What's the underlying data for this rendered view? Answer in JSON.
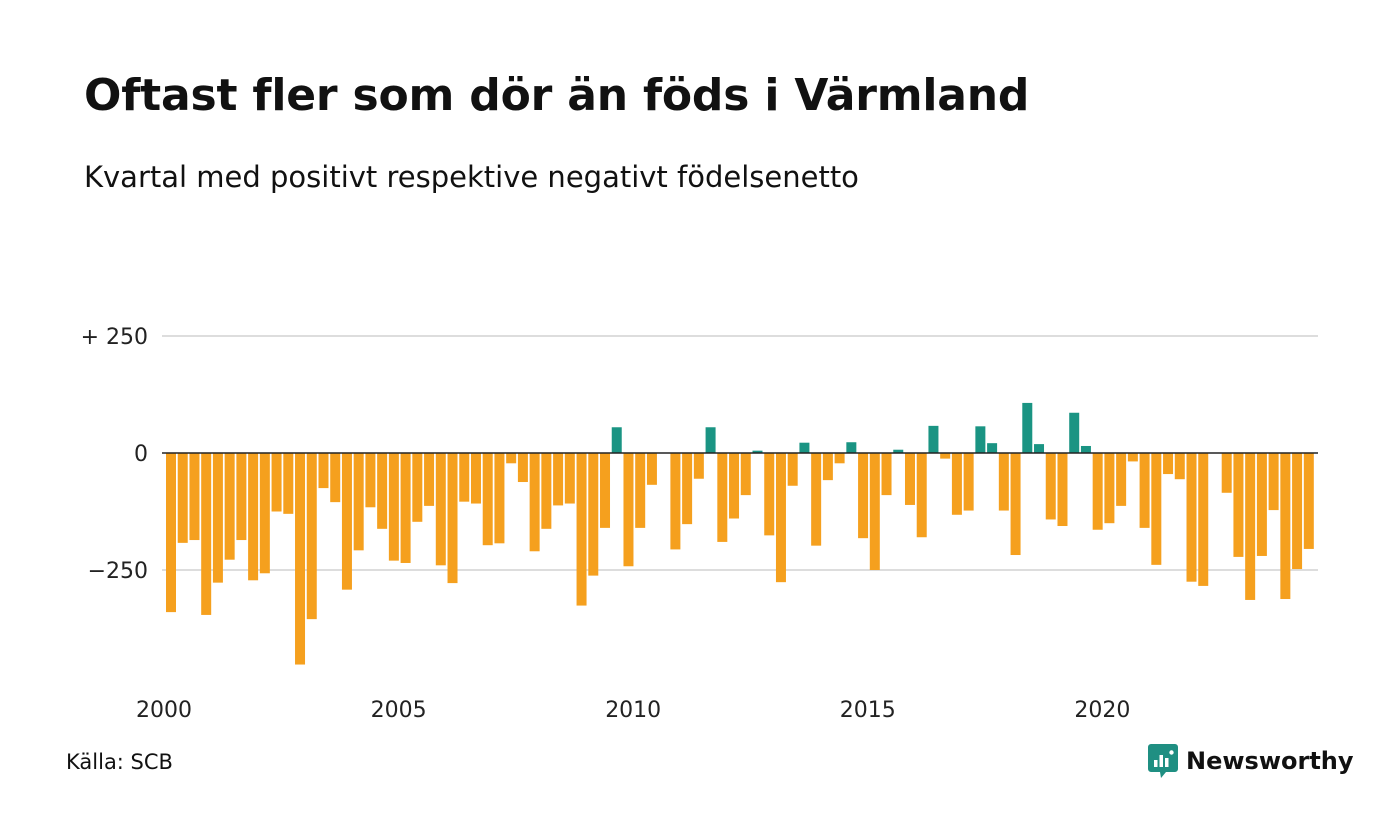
{
  "title": "Oftast fler som dör än föds i Värmland",
  "subtitle": "Kvartal med positivt respektive negativt födelsenetto",
  "source": "Källa: SCB",
  "brand": {
    "name": "Newsworthy",
    "icon": "newsworthy-logo-icon",
    "color": "#1f8f82"
  },
  "colors": {
    "positive": "#1a9483",
    "negative": "#f5a01e",
    "grid": "#dddddd",
    "zero_line": "#222222"
  },
  "chart_data": {
    "type": "bar",
    "title": "Oftast fler som dör än föds i Värmland",
    "subtitle": "Kvartal med positivt respektive negativt födelsenetto",
    "xlabel": "",
    "ylabel": "",
    "x_start": 2000,
    "periods_per_year": 4,
    "xlim": [
      2000,
      2024.75
    ],
    "ylim": [
      -480,
      320
    ],
    "y_ticks": [
      {
        "value": 250,
        "label": "+ 250"
      },
      {
        "value": 0,
        "label": "0"
      },
      {
        "value": -250,
        "label": "−250"
      }
    ],
    "x_ticks": [
      {
        "value": 2000,
        "label": "2000"
      },
      {
        "value": 2005,
        "label": "2005"
      },
      {
        "value": 2010,
        "label": "2010"
      },
      {
        "value": 2015,
        "label": "2015"
      },
      {
        "value": 2020,
        "label": "2020"
      }
    ],
    "grid": true,
    "legend": "none",
    "values": [
      -340,
      -192,
      -186,
      -346,
      -277,
      -228,
      -186,
      -272,
      -257,
      -125,
      -130,
      -452,
      -355,
      -75,
      -105,
      -292,
      -208,
      -116,
      -162,
      -230,
      -235,
      -147,
      -113,
      -240,
      -278,
      -104,
      -108,
      -197,
      -193,
      -22,
      -62,
      -210,
      -162,
      -112,
      -108,
      -326,
      -262,
      -160,
      55,
      -242,
      -160,
      -68,
      0,
      -206,
      -152,
      -55,
      55,
      -190,
      -140,
      -90,
      5,
      -176,
      -276,
      -70,
      22,
      -198,
      -58,
      -22,
      23,
      -182,
      -250,
      -90,
      7,
      -111,
      -180,
      58,
      -12,
      -132,
      -123,
      57,
      21,
      -123,
      -218,
      107,
      19,
      -142,
      -156,
      86,
      15,
      -164,
      -150,
      -113,
      -18,
      -160,
      -239,
      -45,
      -56,
      -275,
      -284,
      0,
      -85,
      -222,
      -314,
      -220,
      -122,
      -312,
      -248,
      -205
    ]
  }
}
